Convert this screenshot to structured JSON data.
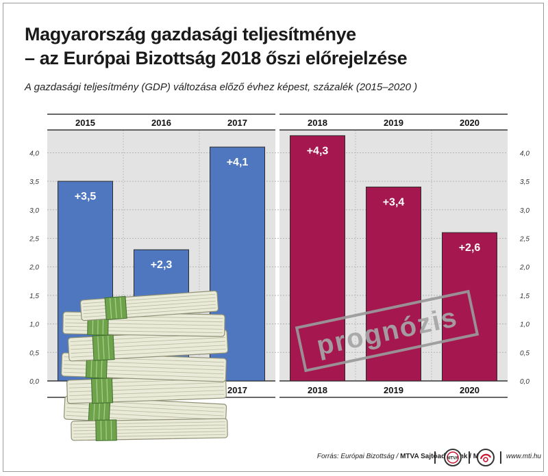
{
  "header": {
    "title_line1": "Magyarország gazdasági teljesítménye",
    "title_line2": "– az Európai Bizottság 2018 őszi előrejelzése",
    "subtitle": "A gazdasági teljesítmény (GDP) változása előző évhez képest, százalék (2015–2020 )"
  },
  "stamp": {
    "text": "prognózis",
    "color": "#a5184f"
  },
  "footer": {
    "source_prefix": "Forrás: Európai Bizottság /",
    "source_bold": "MTVA Sajtóadatbank / MTI",
    "website": "www.mti.hu",
    "logo1_text": "MTVA"
  },
  "chart_data": {
    "type": "bar",
    "categories": [
      "2015",
      "2016",
      "2017",
      "2018",
      "2019",
      "2020"
    ],
    "values": [
      3.5,
      2.3,
      4.1,
      4.3,
      3.4,
      2.6
    ],
    "value_labels": [
      "+3,5",
      "+2,3",
      "+4,1",
      "+4,3",
      "+3,4",
      "+2,6"
    ],
    "bar_colors": [
      "#4f77bf",
      "#4f77bf",
      "#4f77bf",
      "#a5184f",
      "#a5184f",
      "#a5184f"
    ],
    "forecast_from_index": 3,
    "y_ticks": [
      0,
      0.5,
      1,
      1.5,
      2,
      2.5,
      3,
      3.5,
      4
    ],
    "y_tick_labels": [
      "0,0",
      "0,5",
      "1,0",
      "1,5",
      "2,0",
      "2,5",
      "3,0",
      "3,5",
      "4,0"
    ],
    "ylim": [
      0,
      4.4
    ],
    "grid": true,
    "title": "Magyarország gazdasági teljesítménye – az Európai Bizottság 2018 őszi előrejelzése",
    "xlabel": "",
    "ylabel": ""
  }
}
